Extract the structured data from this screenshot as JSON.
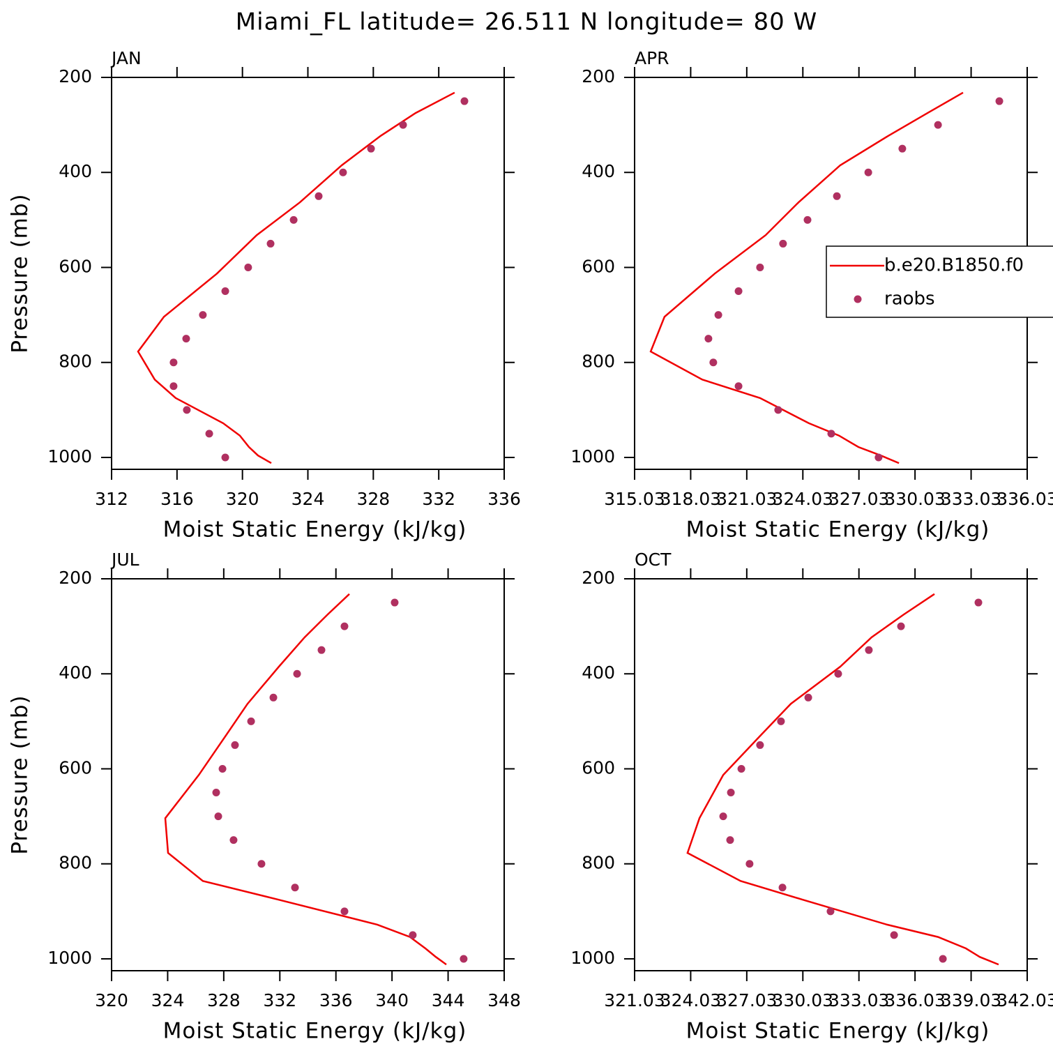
{
  "title": "Miami_FL  latitude= 26.511 N longitude= 80 W",
  "chart_data": [
    {
      "type": "line",
      "title": "JAN",
      "xlabel": "Moist Static Energy (kJ/kg)",
      "ylabel": "Pressure (mb)",
      "xlim": [
        312,
        336
      ],
      "xticks": [
        312,
        316,
        320,
        324,
        328,
        332,
        336
      ],
      "ylim": [
        200,
        1025
      ],
      "yreverse": true,
      "yticks": [
        200,
        400,
        600,
        800,
        1000
      ],
      "series": [
        {
          "name": "b.e20.B1850.f0",
          "kind": "line",
          "color": "#f00000",
          "x": [
            332.97,
            330.58,
            328.45,
            326.07,
            323.51,
            320.87,
            318.44,
            315.2,
            313.62,
            314.64,
            315.92,
            318.82,
            319.84,
            320.4,
            320.95,
            321.76
          ],
          "y": [
            232,
            275,
            323,
            385,
            463,
            532,
            613,
            704,
            777,
            836,
            875,
            928,
            954,
            978,
            996,
            1012
          ]
        },
        {
          "name": "raobs",
          "kind": "scatter",
          "color": "#b03060",
          "x": [
            333.57,
            329.82,
            327.86,
            326.15,
            324.66,
            323.13,
            321.72,
            320.35,
            318.95,
            317.58,
            316.56,
            315.79,
            315.79,
            316.6,
            317.97,
            318.95
          ],
          "y": [
            250,
            300,
            350,
            400,
            450,
            500,
            550,
            600,
            650,
            700,
            750,
            800,
            850,
            900,
            950,
            1000
          ]
        }
      ]
    },
    {
      "type": "line",
      "title": "APR",
      "xlabel": "Moist Static Energy (kJ/kg)",
      "legend": "right",
      "xlim": [
        315.03,
        336.03
      ],
      "xticks": [
        315.03,
        318.03,
        321.03,
        324.03,
        327.03,
        330.03,
        333.03,
        336.03
      ],
      "ylim": [
        200,
        1025
      ],
      "yreverse": true,
      "yticks": [
        200,
        400,
        600,
        800,
        1000
      ],
      "series": [
        {
          "name": "b.e20.B1850.f0",
          "kind": "line",
          "color": "#f00000",
          "x": [
            332.6,
            330.7,
            328.6,
            326.03,
            323.8,
            322.04,
            319.32,
            316.63,
            315.89,
            318.65,
            321.74,
            324.35,
            325.96,
            327.0,
            328.2,
            329.17
          ],
          "y": [
            232,
            275,
            323,
            385,
            463,
            532,
            613,
            704,
            777,
            836,
            875,
            928,
            954,
            978,
            996,
            1012
          ]
        },
        {
          "name": "raobs",
          "kind": "scatter",
          "color": "#b03060",
          "x": [
            334.54,
            331.26,
            329.35,
            327.53,
            325.85,
            324.28,
            322.97,
            321.74,
            320.59,
            319.51,
            318.98,
            319.24,
            320.59,
            322.71,
            325.55,
            328.08
          ],
          "y": [
            250,
            300,
            350,
            400,
            450,
            500,
            550,
            600,
            650,
            700,
            750,
            800,
            850,
            900,
            950,
            1000
          ]
        }
      ]
    },
    {
      "type": "line",
      "title": "JUL",
      "xlabel": "Moist Static Energy (kJ/kg)",
      "ylabel": "Pressure (mb)",
      "xlim": [
        320,
        348
      ],
      "xticks": [
        320,
        324,
        328,
        332,
        336,
        340,
        344,
        348
      ],
      "ylim": [
        200,
        1025
      ],
      "yreverse": true,
      "yticks": [
        200,
        400,
        600,
        800,
        1000
      ],
      "series": [
        {
          "name": "b.e20.B1850.f0",
          "kind": "line",
          "color": "#f00000",
          "x": [
            336.96,
            335.41,
            333.77,
            331.93,
            329.7,
            328.1,
            326.22,
            323.83,
            324.03,
            326.51,
            331.84,
            338.95,
            341.28,
            342.38,
            343.12,
            343.87
          ],
          "y": [
            232,
            275,
            323,
            385,
            463,
            532,
            613,
            704,
            777,
            836,
            875,
            928,
            954,
            978,
            996,
            1012
          ]
        },
        {
          "name": "raobs",
          "kind": "scatter",
          "color": "#b03060",
          "x": [
            340.19,
            336.61,
            334.97,
            333.23,
            331.54,
            329.95,
            328.8,
            327.91,
            327.46,
            327.61,
            328.7,
            330.69,
            333.08,
            336.61,
            341.48,
            345.11
          ],
          "y": [
            250,
            300,
            350,
            400,
            450,
            500,
            550,
            600,
            650,
            700,
            750,
            800,
            850,
            900,
            950,
            1000
          ]
        }
      ]
    },
    {
      "type": "line",
      "title": "OCT",
      "xlabel": "Moist Static Energy (kJ/kg)",
      "xlim": [
        321.03,
        342.03
      ],
      "xticks": [
        321.03,
        324.03,
        327.03,
        330.03,
        333.03,
        336.03,
        339.03,
        342.03
      ],
      "ylim": [
        200,
        1025
      ],
      "yreverse": true,
      "yticks": [
        200,
        400,
        600,
        800,
        1000
      ],
      "series": [
        {
          "name": "b.e20.B1850.f0",
          "kind": "line",
          "color": "#f00000",
          "x": [
            337.07,
            335.43,
            333.71,
            332.03,
            329.39,
            327.71,
            325.77,
            324.5,
            323.86,
            326.7,
            329.98,
            334.53,
            337.26,
            338.75,
            339.49,
            340.5
          ],
          "y": [
            232,
            275,
            323,
            385,
            463,
            532,
            613,
            704,
            777,
            836,
            875,
            928,
            954,
            978,
            996,
            1012
          ]
        },
        {
          "name": "raobs",
          "kind": "scatter",
          "color": "#b03060",
          "x": [
            339.42,
            335.28,
            333.56,
            331.92,
            330.32,
            328.86,
            327.74,
            326.74,
            326.18,
            325.77,
            326.14,
            327.18,
            328.94,
            331.51,
            334.91,
            337.52
          ],
          "y": [
            250,
            300,
            350,
            400,
            450,
            500,
            550,
            600,
            650,
            700,
            750,
            800,
            850,
            900,
            950,
            1000
          ]
        }
      ]
    }
  ]
}
